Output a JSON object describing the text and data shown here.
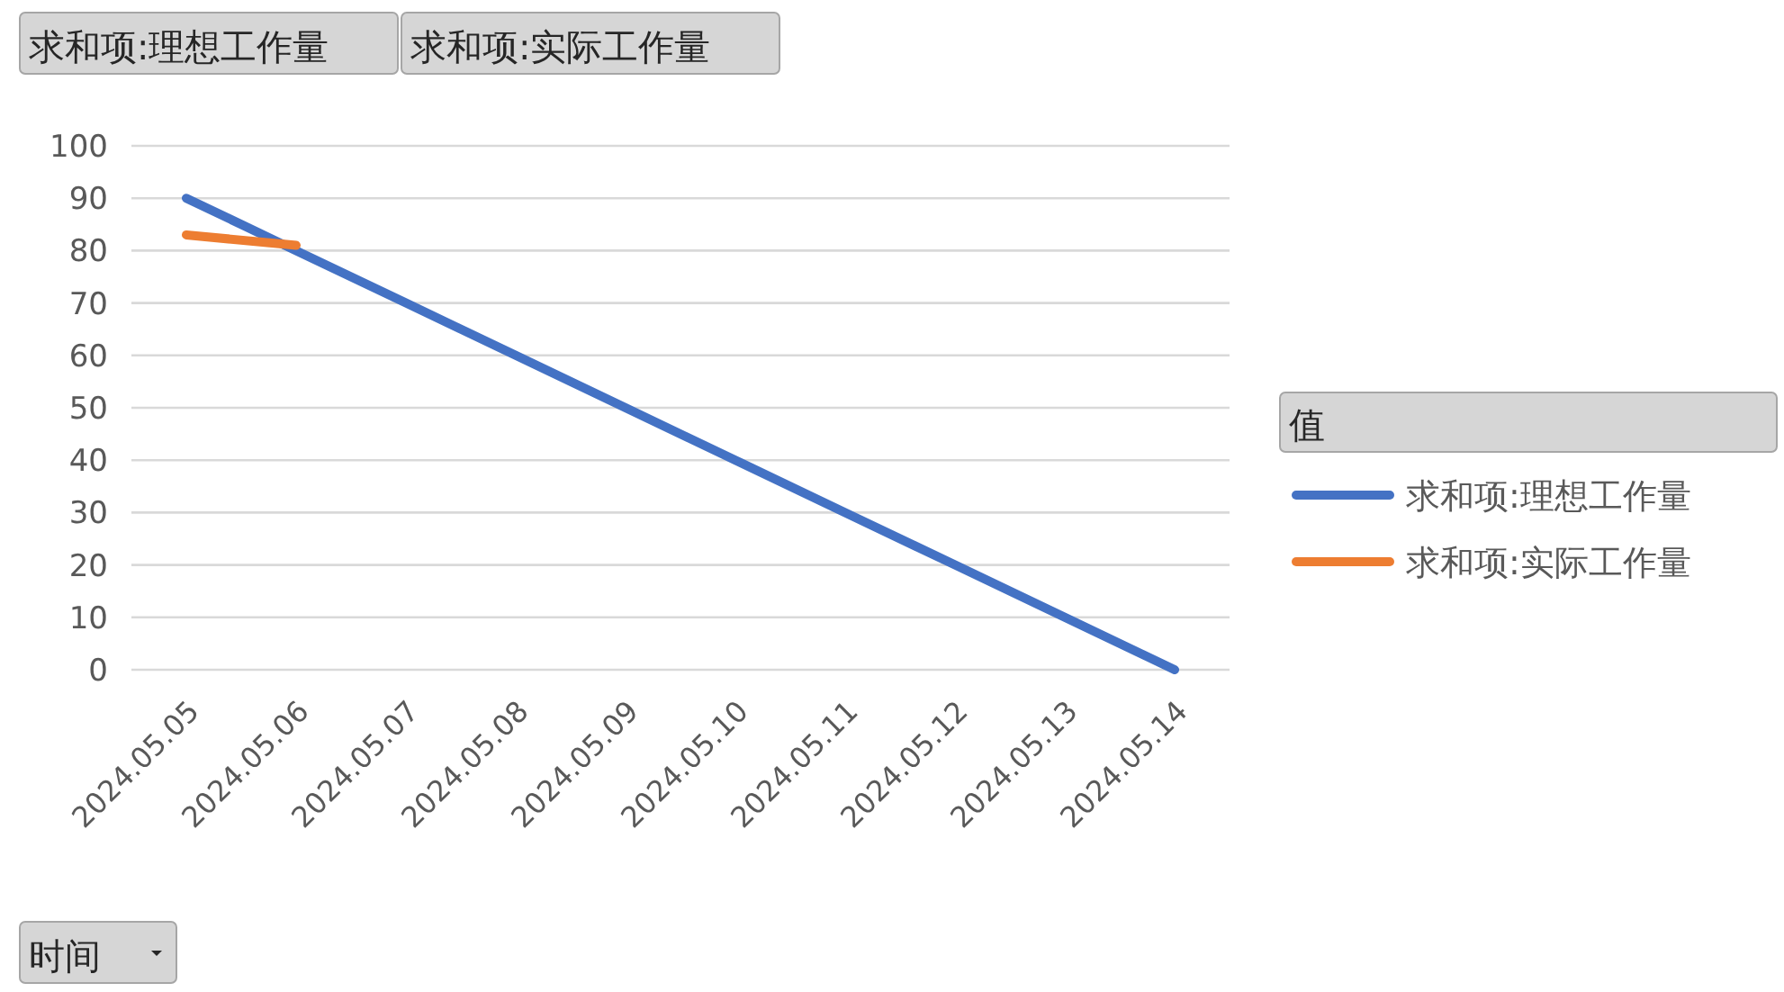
{
  "chart_data": {
    "type": "line",
    "legend_title": "值",
    "annotations": [
      "求和项:理想工作量",
      "求和项:实际工作量",
      "时间"
    ],
    "categories": [
      "2024.05.05",
      "2024.05.06",
      "2024.05.07",
      "2024.05.08",
      "2024.05.09",
      "2024.05.10",
      "2024.05.11",
      "2024.05.12",
      "2024.05.13",
      "2024.05.14"
    ],
    "series": [
      {
        "name": "求和项:理想工作量",
        "color": "#4472c4",
        "values": [
          90,
          80,
          70,
          60,
          50,
          40,
          30,
          20,
          10,
          0
        ]
      },
      {
        "name": "求和项:实际工作量",
        "color": "#ed7d31",
        "values": [
          83,
          81,
          null,
          null,
          null,
          null,
          null,
          null,
          null,
          null
        ]
      }
    ],
    "ylim": [
      0,
      100
    ],
    "yticks": [
      0,
      10,
      20,
      30,
      40,
      50,
      60,
      70,
      80,
      90,
      100
    ],
    "grid": "y",
    "legend": "right",
    "marker": "none",
    "line_style": "solid"
  }
}
